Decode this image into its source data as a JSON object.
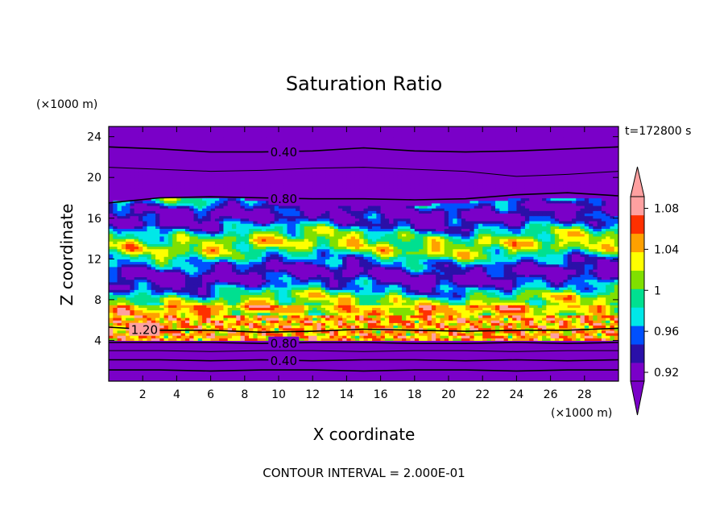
{
  "chart_data": {
    "type": "heatmap",
    "title": "Saturation Ratio",
    "xlabel": "X coordinate",
    "ylabel": "Z coordinate",
    "x_unit": "(×1000 m)",
    "y_unit": "(×1000 m)",
    "time_label": "t=172800 s",
    "footer": "CONTOUR INTERVAL = 2.000E-01",
    "xlim": [
      0,
      30
    ],
    "ylim": [
      0,
      25
    ],
    "x_ticks": [
      2,
      4,
      6,
      8,
      10,
      12,
      14,
      16,
      18,
      20,
      22,
      24,
      26,
      28
    ],
    "y_ticks": [
      4,
      8,
      12,
      16,
      20,
      24
    ],
    "colorbar": {
      "levels": [
        0.92,
        0.94,
        0.96,
        0.98,
        1.0,
        1.02,
        1.04,
        1.06,
        1.08,
        1.1
      ],
      "labels": [
        "0.92",
        "0.96",
        "1",
        "1.04",
        "1.08"
      ],
      "label_values": [
        0.92,
        0.96,
        1.0,
        1.04,
        1.08
      ],
      "colors": [
        "#7a00c8",
        "#2a10a8",
        "#0050ff",
        "#00e8e8",
        "#00e090",
        "#80e000",
        "#ffff00",
        "#ffa000",
        "#ff3000",
        "#ffa0a0"
      ],
      "extend": "both"
    },
    "contours": [
      {
        "level": 0.4,
        "label": "0.40",
        "z": [
          23.0,
          22.8,
          22.5,
          22.5,
          22.6,
          22.9,
          22.6,
          22.5,
          22.6,
          22.8,
          23.0
        ]
      },
      {
        "level": 0.6,
        "label": "",
        "z": [
          21.0,
          20.8,
          20.6,
          20.7,
          20.9,
          21.0,
          20.8,
          20.6,
          20.1,
          20.3,
          20.6
        ]
      },
      {
        "level": 0.8,
        "label": "0.80",
        "z": [
          17.5,
          18.0,
          18.1,
          18.0,
          17.9,
          17.9,
          17.8,
          17.9,
          18.3,
          18.5,
          18.2
        ]
      },
      {
        "level": 1.2,
        "label": "1.20",
        "z": [
          5.3,
          5.0,
          5.0,
          4.8,
          4.9,
          5.1,
          5.0,
          4.9,
          5.0,
          5.0,
          5.2
        ]
      },
      {
        "level": 0.8,
        "label": "0.80",
        "z": [
          3.8,
          3.8,
          3.8,
          3.7,
          3.8,
          3.8,
          3.7,
          3.7,
          3.8,
          3.7,
          3.8
        ]
      },
      {
        "level": 0.6,
        "label": "",
        "z": [
          3.0,
          3.0,
          2.9,
          3.0,
          3.0,
          2.9,
          3.0,
          3.0,
          2.9,
          3.0,
          3.0
        ]
      },
      {
        "level": 0.4,
        "label": "0.40",
        "z": [
          2.1,
          2.1,
          2.0,
          2.1,
          2.0,
          2.1,
          2.1,
          2.0,
          2.1,
          2.0,
          2.1
        ]
      },
      {
        "level": 0.2,
        "label": "",
        "z": [
          1.1,
          1.1,
          1.0,
          1.1,
          1.1,
          1.0,
          1.1,
          1.1,
          1.0,
          1.1,
          1.1
        ]
      }
    ]
  }
}
